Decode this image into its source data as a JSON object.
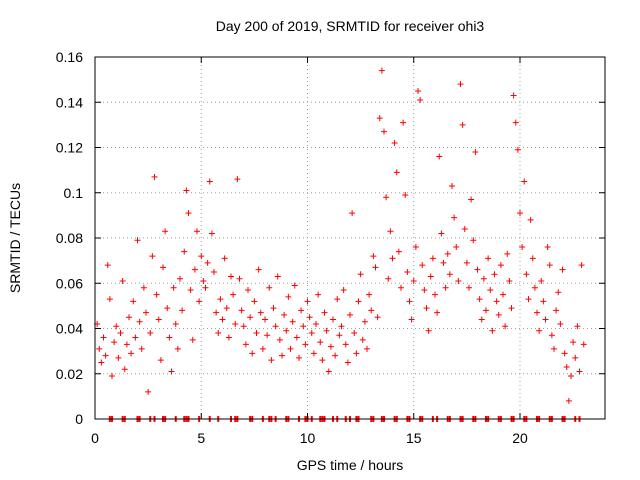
{
  "chart_data": {
    "type": "scatter",
    "title": "Day 200 of 2019, SRMTID for receiver ohi3",
    "xlabel": "GPS time / hours",
    "ylabel": "SRMTID / TECUs",
    "xlim": [
      0,
      24
    ],
    "ylim": [
      0,
      0.16
    ],
    "x_ticks": [
      0,
      5,
      10,
      15,
      20
    ],
    "x_tick_labels": [
      "0",
      "5",
      "10",
      "15",
      "20"
    ],
    "y_ticks": [
      0,
      0.02,
      0.04,
      0.06,
      0.08,
      0.1,
      0.12,
      0.14,
      0.16
    ],
    "y_tick_labels": [
      "0",
      "0.02",
      "0.04",
      "0.06",
      "0.08",
      "0.1",
      "0.12",
      "0.14",
      "0.16"
    ],
    "grid": true,
    "marker": "plus",
    "series": [
      {
        "name": "SRMTID",
        "color": "#ff0000",
        "points": [
          [
            0.1,
            0.042
          ],
          [
            0.2,
            0.031
          ],
          [
            0.3,
            0.025
          ],
          [
            0.4,
            0.036
          ],
          [
            0.5,
            0.028
          ],
          [
            0.6,
            0.068
          ],
          [
            0.7,
            0.053
          ],
          [
            0.8,
            0.019
          ],
          [
            0.9,
            0.034
          ],
          [
            1.0,
            0.041
          ],
          [
            1.1,
            0.027
          ],
          [
            1.2,
            0.038
          ],
          [
            1.3,
            0.061
          ],
          [
            1.4,
            0.022
          ],
          [
            1.5,
            0.033
          ],
          [
            1.6,
            0.045
          ],
          [
            1.7,
            0.029
          ],
          [
            1.8,
            0.052
          ],
          [
            1.9,
            0.036
          ],
          [
            2.0,
            0.079
          ],
          [
            2.1,
            0.043
          ],
          [
            2.2,
            0.031
          ],
          [
            2.3,
            0.058
          ],
          [
            2.4,
            0.047
          ],
          [
            2.5,
            0.012
          ],
          [
            2.6,
            0.038
          ],
          [
            2.7,
            0.072
          ],
          [
            2.8,
            0.107
          ],
          [
            2.9,
            0.055
          ],
          [
            3.0,
            0.044
          ],
          [
            3.1,
            0.026
          ],
          [
            3.2,
            0.067
          ],
          [
            3.3,
            0.083
          ],
          [
            3.4,
            0.049
          ],
          [
            3.5,
            0.036
          ],
          [
            3.6,
            0.021
          ],
          [
            3.7,
            0.058
          ],
          [
            3.8,
            0.042
          ],
          [
            3.9,
            0.031
          ],
          [
            4.0,
            0.062
          ],
          [
            4.1,
            0.048
          ],
          [
            4.2,
            0.074
          ],
          [
            4.3,
            0.101
          ],
          [
            4.4,
            0.091
          ],
          [
            4.5,
            0.057
          ],
          [
            4.6,
            0.035
          ],
          [
            4.7,
            0.066
          ],
          [
            4.8,
            0.083
          ],
          [
            4.9,
            0.052
          ],
          [
            5.0,
            0.072
          ],
          [
            5.1,
            0.061
          ],
          [
            5.2,
            0.058
          ],
          [
            5.3,
            0.069
          ],
          [
            5.4,
            0.105
          ],
          [
            5.5,
            0.082
          ],
          [
            5.6,
            0.065
          ],
          [
            5.7,
            0.047
          ],
          [
            5.8,
            0.038
          ],
          [
            5.9,
            0.053
          ],
          [
            6.0,
            0.044
          ],
          [
            6.1,
            0.071
          ],
          [
            6.2,
            0.049
          ],
          [
            6.3,
            0.036
          ],
          [
            6.4,
            0.063
          ],
          [
            6.5,
            0.055
          ],
          [
            6.6,
            0.042
          ],
          [
            6.7,
            0.106
          ],
          [
            6.8,
            0.062
          ],
          [
            6.9,
            0.048
          ],
          [
            7.0,
            0.041
          ],
          [
            7.1,
            0.033
          ],
          [
            7.2,
            0.057
          ],
          [
            7.3,
            0.045
          ],
          [
            7.4,
            0.029
          ],
          [
            7.5,
            0.052
          ],
          [
            7.6,
            0.038
          ],
          [
            7.7,
            0.066
          ],
          [
            7.8,
            0.047
          ],
          [
            7.9,
            0.031
          ],
          [
            8.0,
            0.044
          ],
          [
            8.1,
            0.037
          ],
          [
            8.2,
            0.058
          ],
          [
            8.3,
            0.026
          ],
          [
            8.4,
            0.049
          ],
          [
            8.5,
            0.041
          ],
          [
            8.6,
            0.063
          ],
          [
            8.7,
            0.035
          ],
          [
            8.8,
            0.028
          ],
          [
            8.9,
            0.046
          ],
          [
            9.0,
            0.039
          ],
          [
            9.1,
            0.054
          ],
          [
            9.2,
            0.031
          ],
          [
            9.3,
            0.043
          ],
          [
            9.4,
            0.059
          ],
          [
            9.5,
            0.036
          ],
          [
            9.6,
            0.027
          ],
          [
            9.7,
            0.048
          ],
          [
            9.8,
            0.041
          ],
          [
            9.9,
            0.033
          ],
          [
            10.0,
            0.052
          ],
          [
            10.1,
            0.045
          ],
          [
            10.2,
            0.038
          ],
          [
            10.3,
            0.029
          ],
          [
            10.4,
            0.042
          ],
          [
            10.5,
            0.055
          ],
          [
            10.6,
            0.034
          ],
          [
            10.7,
            0.026
          ],
          [
            10.8,
            0.047
          ],
          [
            10.9,
            0.039
          ],
          [
            11.0,
            0.021
          ],
          [
            11.1,
            0.032
          ],
          [
            11.2,
            0.044
          ],
          [
            11.3,
            0.028
          ],
          [
            11.4,
            0.053
          ],
          [
            11.5,
            0.037
          ],
          [
            11.6,
            0.041
          ],
          [
            11.7,
            0.057
          ],
          [
            11.8,
            0.033
          ],
          [
            11.9,
            0.025
          ],
          [
            12.0,
            0.046
          ],
          [
            12.1,
            0.091
          ],
          [
            12.2,
            0.038
          ],
          [
            12.3,
            0.029
          ],
          [
            12.4,
            0.052
          ],
          [
            12.5,
            0.064
          ],
          [
            12.6,
            0.035
          ],
          [
            12.7,
            0.043
          ],
          [
            12.8,
            0.031
          ],
          [
            12.9,
            0.055
          ],
          [
            13.0,
            0.048
          ],
          [
            13.1,
            0.072
          ],
          [
            13.2,
            0.067
          ],
          [
            13.3,
            0.045
          ],
          [
            13.4,
            0.133
          ],
          [
            13.5,
            0.154
          ],
          [
            13.6,
            0.127
          ],
          [
            13.7,
            0.098
          ],
          [
            13.8,
            0.062
          ],
          [
            13.9,
            0.083
          ],
          [
            14.0,
            0.071
          ],
          [
            14.1,
            0.122
          ],
          [
            14.2,
            0.109
          ],
          [
            14.3,
            0.074
          ],
          [
            14.4,
            0.058
          ],
          [
            14.5,
            0.131
          ],
          [
            14.6,
            0.099
          ],
          [
            14.7,
            0.065
          ],
          [
            14.8,
            0.052
          ],
          [
            14.9,
            0.044
          ],
          [
            15.0,
            0.061
          ],
          [
            15.1,
            0.076
          ],
          [
            15.2,
            0.145
          ],
          [
            15.3,
            0.141
          ],
          [
            15.4,
            0.068
          ],
          [
            15.5,
            0.057
          ],
          [
            15.6,
            0.049
          ],
          [
            15.7,
            0.039
          ],
          [
            15.8,
            0.063
          ],
          [
            15.9,
            0.071
          ],
          [
            16.0,
            0.055
          ],
          [
            16.1,
            0.047
          ],
          [
            16.2,
            0.116
          ],
          [
            16.3,
            0.082
          ],
          [
            16.4,
            0.069
          ],
          [
            16.5,
            0.058
          ],
          [
            16.6,
            0.073
          ],
          [
            16.7,
            0.064
          ],
          [
            16.8,
            0.103
          ],
          [
            16.9,
            0.089
          ],
          [
            17.0,
            0.076
          ],
          [
            17.1,
            0.061
          ],
          [
            17.2,
            0.148
          ],
          [
            17.3,
            0.13
          ],
          [
            17.4,
            0.084
          ],
          [
            17.5,
            0.069
          ],
          [
            17.6,
            0.058
          ],
          [
            17.7,
            0.097
          ],
          [
            17.8,
            0.079
          ],
          [
            17.9,
            0.118
          ],
          [
            18.0,
            0.066
          ],
          [
            18.1,
            0.053
          ],
          [
            18.2,
            0.044
          ],
          [
            18.3,
            0.062
          ],
          [
            18.4,
            0.048
          ],
          [
            18.5,
            0.071
          ],
          [
            18.6,
            0.057
          ],
          [
            18.7,
            0.039
          ],
          [
            18.8,
            0.064
          ],
          [
            18.9,
            0.052
          ],
          [
            19.0,
            0.046
          ],
          [
            19.1,
            0.068
          ],
          [
            19.2,
            0.055
          ],
          [
            19.3,
            0.041
          ],
          [
            19.4,
            0.073
          ],
          [
            19.5,
            0.061
          ],
          [
            19.6,
            0.049
          ],
          [
            19.7,
            0.143
          ],
          [
            19.8,
            0.131
          ],
          [
            19.9,
            0.119
          ],
          [
            20.0,
            0.091
          ],
          [
            20.1,
            0.076
          ],
          [
            20.2,
            0.105
          ],
          [
            20.3,
            0.064
          ],
          [
            20.4,
            0.053
          ],
          [
            20.5,
            0.088
          ],
          [
            20.6,
            0.071
          ],
          [
            20.7,
            0.058
          ],
          [
            20.8,
            0.047
          ],
          [
            20.9,
            0.039
          ],
          [
            21.0,
            0.061
          ],
          [
            21.1,
            0.052
          ],
          [
            21.2,
            0.044
          ],
          [
            21.3,
            0.076
          ],
          [
            21.4,
            0.068
          ],
          [
            21.5,
            0.037
          ],
          [
            21.6,
            0.031
          ],
          [
            21.7,
            0.048
          ],
          [
            21.8,
            0.056
          ],
          [
            21.9,
            0.042
          ],
          [
            22.0,
            0.066
          ],
          [
            22.1,
            0.029
          ],
          [
            22.2,
            0.023
          ],
          [
            22.3,
            0.008
          ],
          [
            22.4,
            0.019
          ],
          [
            22.5,
            0.034
          ],
          [
            22.6,
            0.027
          ],
          [
            22.7,
            0.041
          ],
          [
            22.8,
            0.021
          ],
          [
            22.9,
            0.068
          ],
          [
            23.0,
            0.033
          ]
        ]
      }
    ],
    "zero_marks": [
      0.7,
      0.8,
      1.3,
      1.4,
      2.0,
      2.1,
      2.6,
      2.8,
      3.2,
      3.3,
      3.8,
      4.2,
      4.3,
      4.4,
      4.9,
      5.4,
      5.8,
      6.4,
      6.6,
      6.7,
      7.3,
      7.4,
      7.9,
      8.2,
      8.3,
      8.5,
      9.0,
      9.1,
      9.6,
      9.9,
      10.0,
      10.2,
      10.6,
      10.7,
      10.8,
      11.2,
      11.4,
      11.8,
      12.0,
      12.3,
      12.4,
      13.0,
      13.1,
      13.5,
      13.6,
      14.1,
      14.2,
      14.7,
      14.8,
      15.3,
      15.4,
      15.9,
      16.1,
      16.6,
      16.7,
      17.2,
      17.3,
      17.8,
      17.9,
      18.4,
      18.5,
      19.0,
      19.1,
      19.6,
      19.7,
      20.2,
      20.3,
      20.8,
      20.9,
      21.4,
      21.5,
      22.0,
      22.1,
      22.6,
      22.8
    ]
  }
}
